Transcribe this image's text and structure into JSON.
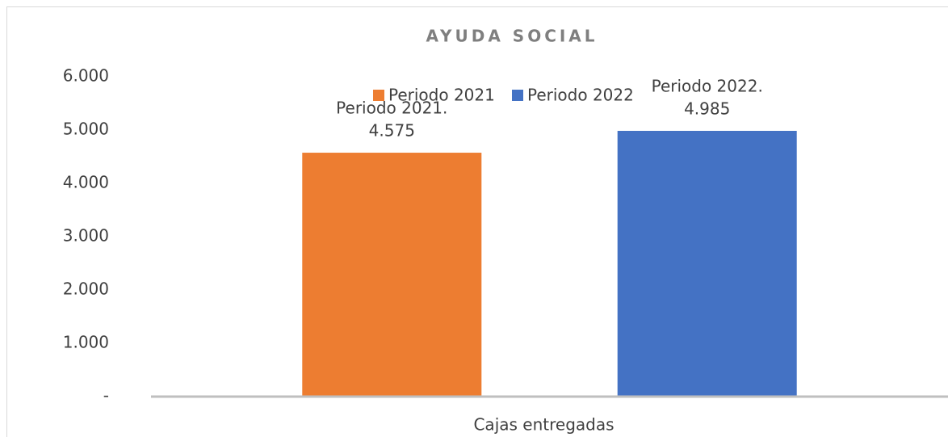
{
  "chart_data": {
    "type": "bar",
    "title": "AYUDA SOCIAL",
    "categories": [
      "Cajas entregadas"
    ],
    "series": [
      {
        "name": "Periodo 2021",
        "label_name": "Periodo 2021.",
        "color": "#ed7d31",
        "values": [
          4575
        ],
        "value_labels": [
          "4.575"
        ]
      },
      {
        "name": "Periodo 2022",
        "label_name": "Periodo 2022.",
        "color": "#4472c4",
        "values": [
          4985
        ],
        "value_labels": [
          "4.985"
        ]
      }
    ],
    "ylim": [
      0,
      6000
    ],
    "yticks": [
      {
        "value": 0,
        "label": "-"
      },
      {
        "value": 1000,
        "label": "1.000"
      },
      {
        "value": 2000,
        "label": "2.000"
      },
      {
        "value": 3000,
        "label": "3.000"
      },
      {
        "value": 4000,
        "label": "4.000"
      },
      {
        "value": 5000,
        "label": "5.000"
      },
      {
        "value": 6000,
        "label": "6.000"
      }
    ],
    "grid": false,
    "legend": "top"
  }
}
